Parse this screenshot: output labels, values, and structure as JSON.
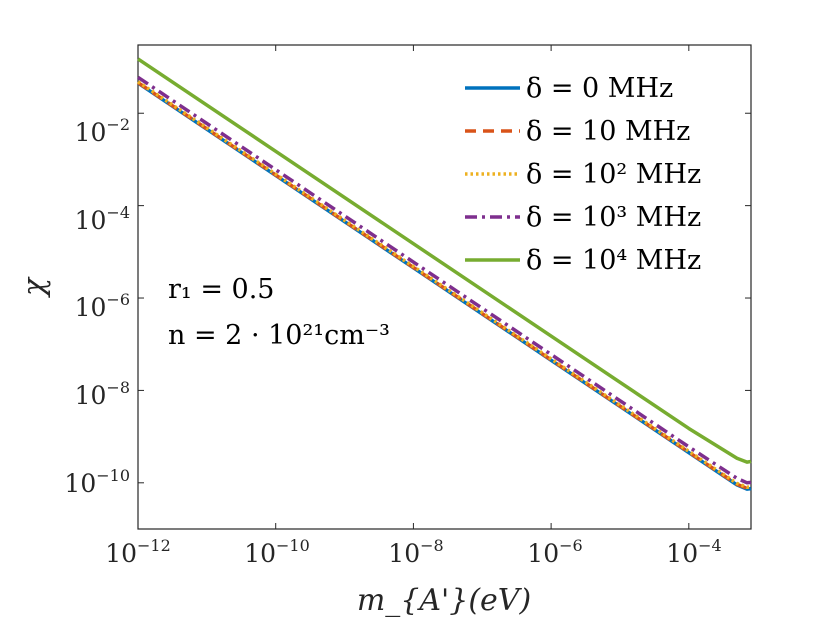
{
  "chart_data": {
    "type": "line",
    "xscale": "log",
    "yscale": "log",
    "xlim": [
      1e-12,
      0.0008
    ],
    "ylim": [
      1e-11,
      0.3
    ],
    "xlabel": "m_{A'}(eV)",
    "ylabel": "χ",
    "x_ticks": [
      {
        "base": "10",
        "exp": "−12"
      },
      {
        "base": "10",
        "exp": "−10"
      },
      {
        "base": "10",
        "exp": "−8"
      },
      {
        "base": "10",
        "exp": "−6"
      },
      {
        "base": "10",
        "exp": "−4"
      }
    ],
    "y_ticks": [
      {
        "base": "10",
        "exp": "−2"
      },
      {
        "base": "10",
        "exp": "−4"
      },
      {
        "base": "10",
        "exp": "−6"
      },
      {
        "base": "10",
        "exp": "−8"
      },
      {
        "base": "10",
        "exp": "−10"
      }
    ],
    "legend_position": "top-right",
    "series": [
      {
        "name": "δ = 0 MHz",
        "color": "#0072BD",
        "dash": "solid",
        "x": [
          1e-12,
          1e-10,
          1e-08,
          1e-06,
          0.0001,
          0.0005,
          0.0007,
          0.0008
        ],
        "y": [
          0.045,
          0.00045,
          4.5e-06,
          4.5e-08,
          4.5e-10,
          9e-11,
          7.3e-11,
          7.5e-11
        ]
      },
      {
        "name": "δ = 10 MHz",
        "color": "#D95319",
        "dash": "dashed",
        "x": [
          1e-12,
          1e-10,
          1e-08,
          1e-06,
          0.0001,
          0.0005,
          0.0007,
          0.0008
        ],
        "y": [
          0.046,
          0.00046,
          4.6e-06,
          4.6e-08,
          4.6e-10,
          9.3e-11,
          7.6e-11,
          7.8e-11
        ]
      },
      {
        "name": "δ = 10² MHz",
        "color": "#EDB120",
        "dash": "dotted",
        "x": [
          1e-12,
          1e-10,
          1e-08,
          1e-06,
          0.0001,
          0.0005,
          0.0007,
          0.0008
        ],
        "y": [
          0.048,
          0.00048,
          4.8e-06,
          4.8e-08,
          4.8e-10,
          9.7e-11,
          8e-11,
          8.2e-11
        ]
      },
      {
        "name": "δ = 10³ MHz",
        "color": "#7E2F8E",
        "dash": "dashdot",
        "x": [
          1e-12,
          1e-10,
          1e-08,
          1e-06,
          0.0001,
          0.0005,
          0.0007,
          0.0008
        ],
        "y": [
          0.06,
          0.0006,
          6e-06,
          6e-08,
          6e-10,
          1.25e-10,
          1e-10,
          1.02e-10
        ]
      },
      {
        "name": "δ = 10⁴ MHz",
        "color": "#77AC30",
        "dash": "solid",
        "x": [
          1e-12,
          1e-10,
          1e-08,
          1e-06,
          0.0001,
          0.0005,
          0.0007,
          0.0008
        ],
        "y": [
          0.15,
          0.0015,
          1.5e-05,
          1.5e-07,
          1.5e-09,
          3.4e-10,
          2.8e-10,
          2.9e-10
        ]
      }
    ],
    "annotations": [
      "r₁ = 0.5",
      "n = 2 · 10²¹cm⁻³"
    ]
  }
}
